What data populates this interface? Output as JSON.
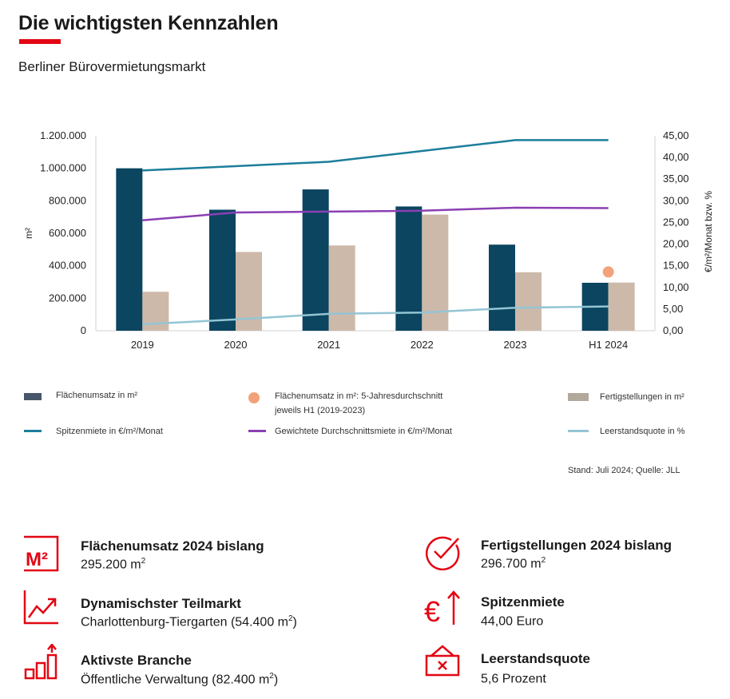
{
  "header": {
    "title": "Die wichtigsten Kennzahlen",
    "subtitle": "Berliner Bürovermietungsmarkt"
  },
  "colors": {
    "accent": "#e30613",
    "flaechenumsatz": "#0b4560",
    "fertigstellungen": "#cdb9aa",
    "spitzenmiete": "#1b7e9a",
    "durchschnittsmiete": "#8b3fb4",
    "leerstand": "#94c5d4",
    "fuenfjahres": "#f2a27a"
  },
  "chart_data": {
    "type": "bar",
    "categories": [
      "2019",
      "2020",
      "2021",
      "2022",
      "2023",
      "H1 2024"
    ],
    "ylabel": "m²",
    "y2label": "€/m²/Monat bzw. %",
    "ylim": [
      0,
      1200000
    ],
    "y2lim": [
      0,
      45
    ],
    "y_ticks": [
      "0",
      "200.000",
      "400.000",
      "600.000",
      "800.000",
      "1.000.000",
      "1.200.000"
    ],
    "y2_ticks": [
      "0,00",
      "5,00",
      "10,00",
      "15,00",
      "20,00",
      "25,00",
      "30,00",
      "35,00",
      "40,00",
      "45,00"
    ],
    "bar_series": [
      {
        "name": "Flächenumsatz in m²",
        "values": [
          1000000,
          745000,
          870000,
          765000,
          530000,
          295200
        ]
      },
      {
        "name": "Fertigstellungen in m²",
        "values": [
          240000,
          485000,
          525000,
          715000,
          360000,
          296700
        ]
      }
    ],
    "line_series": [
      {
        "name": "Spitzenmiete in €/m²/Monat",
        "axis": "right",
        "values": [
          37.0,
          38.0,
          39.0,
          41.5,
          44.0,
          44.0
        ]
      },
      {
        "name": "Gewichtete Durchschnittsmiete in €/m²/Monat",
        "axis": "right",
        "values": [
          25.5,
          27.3,
          27.5,
          27.7,
          28.4,
          28.3
        ]
      },
      {
        "name": "Leerstandsquote in %",
        "axis": "right",
        "values": [
          1.5,
          2.6,
          3.9,
          4.2,
          5.3,
          5.6
        ]
      }
    ],
    "point_series": [
      {
        "name": "Flächenumsatz in m²: 5-Jahresdurchschnitt jeweils H1 (2019-2023)",
        "category": "H1 2024",
        "value": 362000
      }
    ]
  },
  "legend": {
    "flaechenumsatz": "Flächenumsatz  in m²",
    "fuenfjahres_line1": "Flächenumsatz  in m²: 5-Jahresdurchschnitt",
    "fuenfjahres_line2": "jeweils H1 (2019-2023)",
    "fertigstellungen": "Fertigstellungen  in m²",
    "spitzenmiete": "Spitzenmiete  in €/m²/Monat",
    "durchschnittsmiete": "Gewichtete Durchschnittsmiete in €/m²/Monat",
    "leerstand": "Leerstandsquote  in %"
  },
  "source": "Stand: Juli 2024; Quelle: JLL",
  "kpis": [
    {
      "icon": "m2-icon",
      "label": "Flächenumsatz 2024 bislang",
      "value": "295.200 m",
      "sup": "2",
      "suffix": ""
    },
    {
      "icon": "checkmark-icon",
      "label": "Fertigstellungen 2024 bislang",
      "value": "296.700 m",
      "sup": "2",
      "suffix": ""
    },
    {
      "icon": "trend-chart-icon",
      "label": "Dynamischster Teilmarkt",
      "value": "Charlottenburg-Tiergarten (54.400 m",
      "sup": "2",
      "suffix": ")"
    },
    {
      "icon": "euro-up-icon",
      "label": "Spitzenmiete",
      "value": "44,00 Euro",
      "sup": "",
      "suffix": ""
    },
    {
      "icon": "bar-growth-icon",
      "label": "Aktivste Branche",
      "value": "Öffentliche Verwaltung (82.400 m",
      "sup": "2",
      "suffix": ")"
    },
    {
      "icon": "vacancy-sign-icon",
      "label": "Leerstandsquote",
      "value": "5,6 Prozent",
      "sup": "",
      "suffix": ""
    }
  ]
}
